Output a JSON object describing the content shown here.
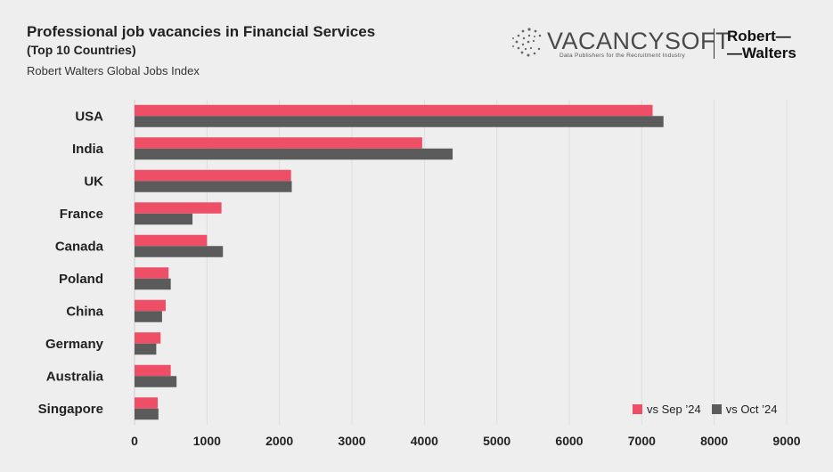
{
  "header": {
    "title": "Professional job vacancies in Financial Services",
    "subtitle": "(Top 10 Countries)",
    "source": "Robert Walters Global Jobs Index"
  },
  "logos": {
    "vacancysoft_name": "VACANCYSOFT",
    "vacancysoft_tagline": "Data Publishers for the Recruitment Industry",
    "robert_walters_line1": "Robert—",
    "robert_walters_line2": "—Walters"
  },
  "colors": {
    "series_sep": "#ee4f67",
    "series_oct": "#5b5b5b",
    "background": "#eeeeee"
  },
  "chart_data": {
    "type": "bar",
    "orientation": "horizontal",
    "categories": [
      "USA",
      "India",
      "UK",
      "France",
      "Canada",
      "Poland",
      "China",
      "Germany",
      "Australia",
      "Singapore"
    ],
    "series": [
      {
        "name": "vs Sep ’24",
        "values": [
          7150,
          3970,
          2160,
          1200,
          1000,
          470,
          430,
          360,
          500,
          320
        ]
      },
      {
        "name": "vs Oct ’24",
        "values": [
          7300,
          4390,
          2170,
          800,
          1220,
          500,
          380,
          300,
          580,
          330
        ]
      }
    ],
    "xlim": [
      0,
      9000
    ],
    "xticks": [
      0,
      1000,
      2000,
      3000,
      4000,
      5000,
      6000,
      7000,
      8000,
      9000
    ],
    "grid": true,
    "legend_position": "bottom-right"
  }
}
